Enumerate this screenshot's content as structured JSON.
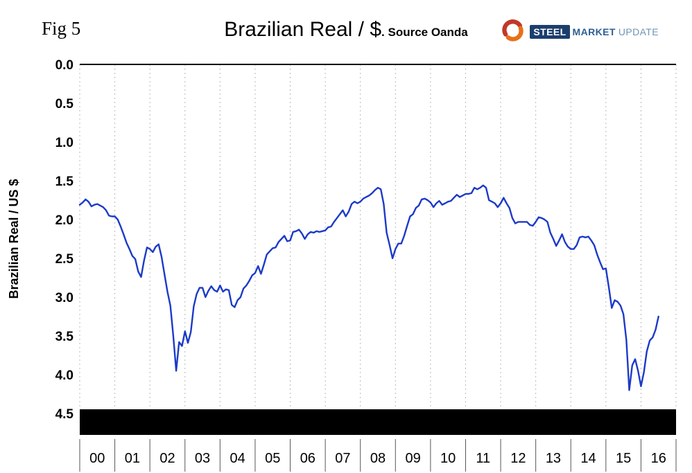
{
  "figure_label": "Fig 5",
  "header": {
    "title": "Brazilian Real / $",
    "subtitle": ". Source Oanda"
  },
  "logo": {
    "steel": "STEEL",
    "market": "MARKET",
    "update": "UPDATE"
  },
  "chart_data": {
    "type": "line",
    "title": "Brazilian Real / $. Source Oanda",
    "xlabel": "",
    "ylabel": "Brazilian Real / US $",
    "y_axis_inverted": true,
    "ylim": [
      0.0,
      4.5
    ],
    "y_ticks": [
      "0.0",
      "0.5",
      "1.0",
      "1.5",
      "2.0",
      "2.5",
      "3.0",
      "3.5",
      "4.0",
      "4.5"
    ],
    "x_labels": [
      "00",
      "01",
      "02",
      "03",
      "04",
      "05",
      "06",
      "07",
      "08",
      "09",
      "10",
      "11",
      "12",
      "13",
      "14",
      "15",
      "16"
    ],
    "x_range_years": [
      2000,
      2017
    ],
    "grid": "vertical-dashed",
    "legend": "none",
    "line_color": "#1c3ac8",
    "series": [
      {
        "name": "Brazilian Real per US Dollar",
        "start_year": 2000,
        "interval": "monthly",
        "values": [
          1.81,
          1.78,
          1.74,
          1.77,
          1.83,
          1.81,
          1.8,
          1.82,
          1.84,
          1.88,
          1.95,
          1.96,
          1.96,
          2.0,
          2.09,
          2.19,
          2.3,
          2.38,
          2.47,
          2.51,
          2.67,
          2.74,
          2.53,
          2.36,
          2.38,
          2.42,
          2.35,
          2.32,
          2.48,
          2.71,
          2.93,
          3.11,
          3.5,
          3.95,
          3.58,
          3.63,
          3.44,
          3.59,
          3.45,
          3.12,
          2.96,
          2.88,
          2.88,
          3.0,
          2.92,
          2.86,
          2.91,
          2.93,
          2.85,
          2.93,
          2.9,
          2.91,
          3.1,
          3.13,
          3.04,
          3.0,
          2.89,
          2.85,
          2.79,
          2.72,
          2.69,
          2.6,
          2.7,
          2.58,
          2.45,
          2.41,
          2.37,
          2.36,
          2.29,
          2.25,
          2.21,
          2.28,
          2.27,
          2.16,
          2.15,
          2.13,
          2.18,
          2.25,
          2.19,
          2.16,
          2.17,
          2.15,
          2.16,
          2.15,
          2.14,
          2.1,
          2.09,
          2.03,
          1.98,
          1.93,
          1.88,
          1.96,
          1.9,
          1.8,
          1.77,
          1.79,
          1.77,
          1.73,
          1.71,
          1.69,
          1.66,
          1.62,
          1.59,
          1.61,
          1.8,
          2.17,
          2.33,
          2.5,
          2.38,
          2.31,
          2.31,
          2.21,
          2.08,
          1.96,
          1.93,
          1.85,
          1.82,
          1.74,
          1.73,
          1.75,
          1.78,
          1.84,
          1.79,
          1.76,
          1.81,
          1.79,
          1.77,
          1.76,
          1.72,
          1.68,
          1.71,
          1.69,
          1.67,
          1.67,
          1.66,
          1.59,
          1.61,
          1.59,
          1.56,
          1.59,
          1.75,
          1.77,
          1.79,
          1.84,
          1.79,
          1.72,
          1.79,
          1.85,
          1.98,
          2.05,
          2.03,
          2.03,
          2.03,
          2.03,
          2.07,
          2.08,
          2.03,
          1.97,
          1.98,
          2.0,
          2.03,
          2.17,
          2.25,
          2.34,
          2.27,
          2.19,
          2.29,
          2.35,
          2.38,
          2.38,
          2.33,
          2.23,
          2.22,
          2.23,
          2.22,
          2.27,
          2.33,
          2.45,
          2.55,
          2.64,
          2.63,
          2.87,
          3.14,
          3.04,
          3.06,
          3.11,
          3.22,
          3.55,
          4.2,
          3.88,
          3.8,
          3.95,
          4.15,
          3.97,
          3.7,
          3.56,
          3.52,
          3.42,
          3.25
        ]
      }
    ]
  }
}
